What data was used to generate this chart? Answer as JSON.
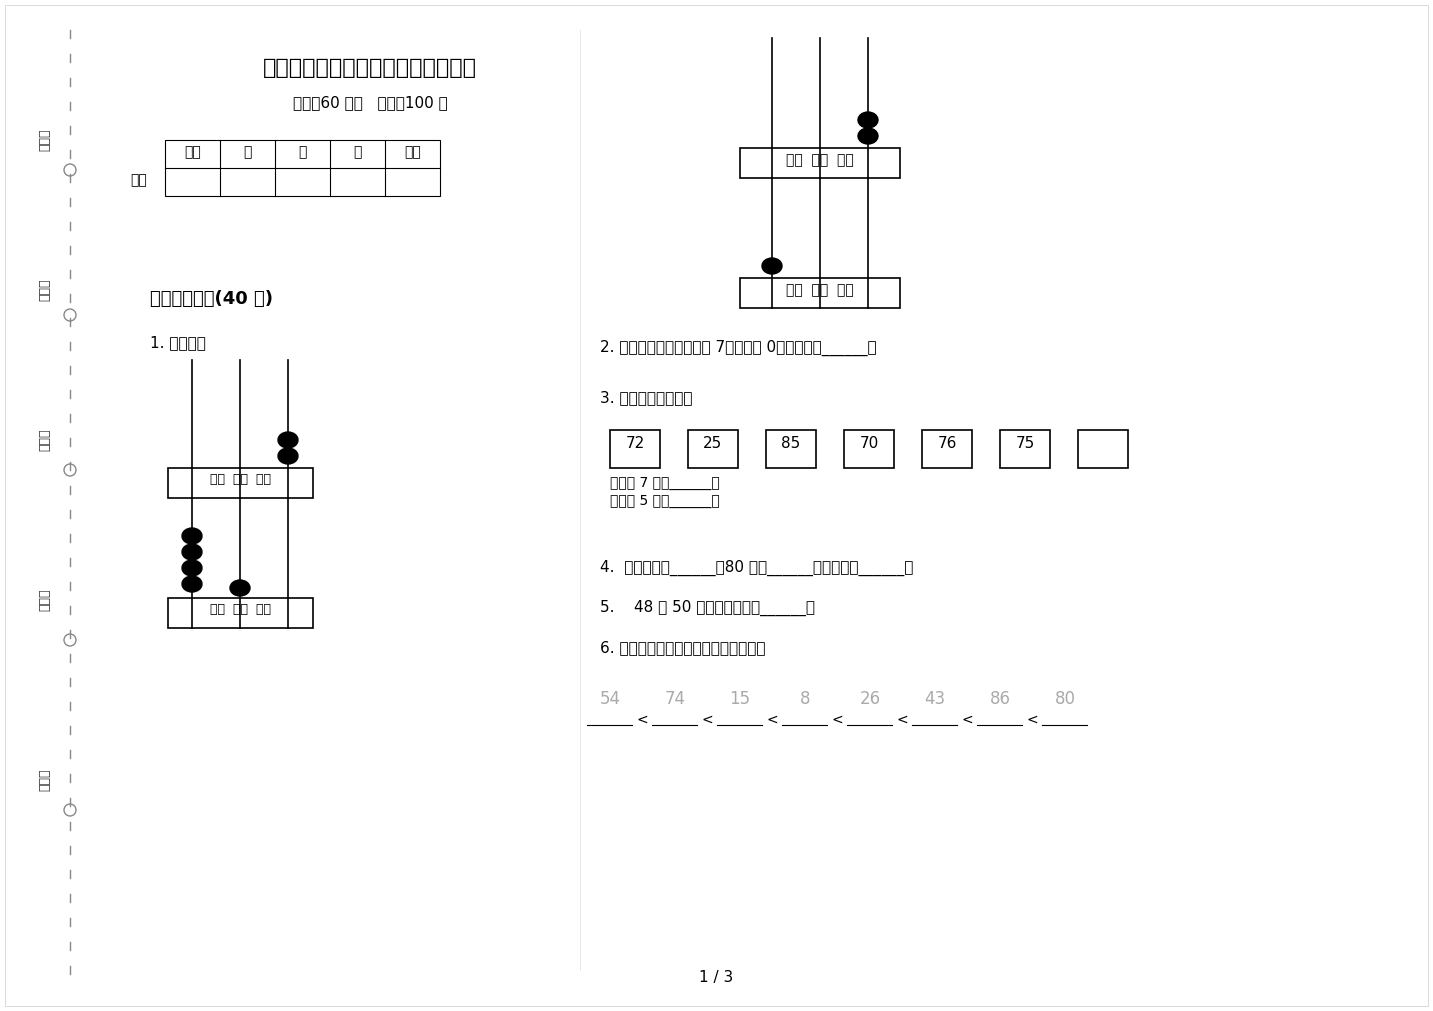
{
  "title": "精选混合一年级下学期数学期末试卷",
  "subtitle": "时间：60 分钟   满分：100 分",
  "table_label": "题号",
  "table_cols": [
    "一",
    "二",
    "三",
    "总分"
  ],
  "score_label": "得分",
  "section1_title": "一、基础练习(40 分)",
  "q1_text": "1. 看图写数",
  "abacus1_label": "百位  十位  个位",
  "abacus2_label": "百位  十位  个位",
  "abacus3_label": "百位  十位  个位",
  "abacus4_label": "百位  十位  个位",
  "q2_text": "2. 一个两位数，最高位是 7，其余是 0，这个数是______。",
  "q3_text": "3. 选一选，填一填。",
  "number_boxes": [
    "72",
    "25",
    "85",
    "70",
    "76",
    "75"
  ],
  "q3_sub1": "十位是 7 的数______；",
  "q3_sub2": "个位是 5 的数______。",
  "q4_text": "4.  七十五写作______，80 读作______，一百写作______。",
  "q5_text": "5.    48 和 50 中间的一个数是______。",
  "q6_text": "6. 将下面的数按从小到大的顺序排列。",
  "sort_numbers": [
    "54",
    "74",
    "15",
    "8",
    "26",
    "43",
    "86",
    "80"
  ],
  "page_text": "1 / 3",
  "left_labels": [
    "考号：",
    "考场：",
    "姓名：",
    "班级：",
    "学校："
  ],
  "bg_color": "#ffffff",
  "text_color": "#000000",
  "light_text_color": "#aaaaaa"
}
